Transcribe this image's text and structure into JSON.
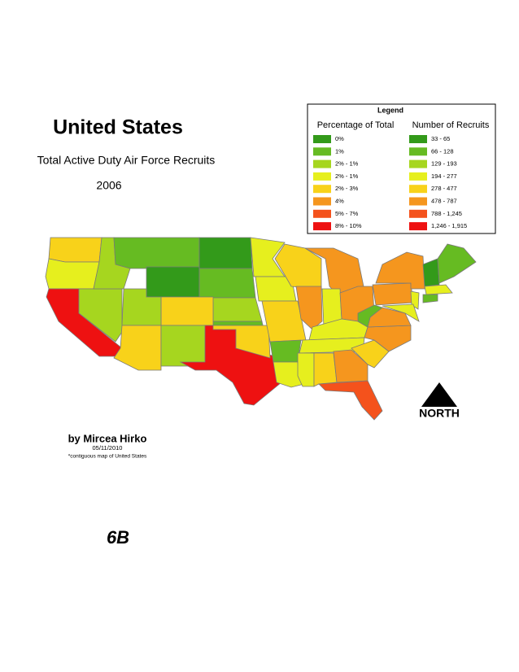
{
  "title": "United States",
  "subtitle": "Total Active Duty Air Force Recruits",
  "year": "2006",
  "legend": {
    "title": "Legend",
    "percent_header": "Percentage of Total",
    "count_header": "Number of Recruits",
    "classes": [
      {
        "percent": "0%",
        "count": "33 - 65",
        "color": "#339a1a"
      },
      {
        "percent": "1%",
        "count": "66 - 128",
        "color": "#66bb22"
      },
      {
        "percent": "2% - 1%",
        "count": "129 - 193",
        "color": "#a6d61f"
      },
      {
        "percent": "2% - 1%",
        "count": "194 - 277",
        "color": "#e6ef1e"
      },
      {
        "percent": "2% - 3%",
        "count": "278 - 477",
        "color": "#f8d21a"
      },
      {
        "percent": "4%",
        "count": "478 - 787",
        "color": "#f5961e"
      },
      {
        "percent": "5% - 7%",
        "count": "788 - 1,245",
        "color": "#f4521c"
      },
      {
        "percent": "8% - 10%",
        "count": "1,246 - 1,915",
        "color": "#ee1111"
      }
    ]
  },
  "author": "by Mircea Hirko",
  "date": "05/11/2010",
  "note": "*contiguous map of United States",
  "north": "NORTH",
  "page_label": "6B"
}
